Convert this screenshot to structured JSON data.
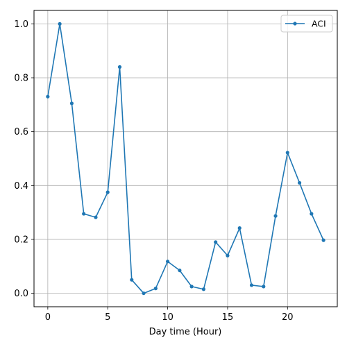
{
  "chart_data": {
    "type": "line",
    "title": "",
    "xlabel": "Day time (Hour)",
    "ylabel": "",
    "xlim": [
      -1.15,
      24.15
    ],
    "ylim": [
      -0.05,
      1.05
    ],
    "xticks": [
      0,
      5,
      10,
      15,
      20
    ],
    "xtick_labels": [
      "0",
      "5",
      "10",
      "15",
      "20"
    ],
    "yticks": [
      0.0,
      0.2,
      0.4,
      0.6,
      0.8,
      1.0
    ],
    "ytick_labels": [
      "0.0",
      "0.2",
      "0.4",
      "0.6",
      "0.8",
      "1.0"
    ],
    "grid": true,
    "legend_position": "top-right",
    "x": [
      0,
      1,
      2,
      3,
      4,
      5,
      6,
      7,
      8,
      9,
      10,
      11,
      12,
      13,
      14,
      15,
      16,
      17,
      18,
      19,
      20,
      21,
      22,
      23
    ],
    "series": [
      {
        "name": "ACI",
        "color": "#1f77b4",
        "marker": "circle",
        "values": [
          0.73,
          1.0,
          0.705,
          0.295,
          0.282,
          0.375,
          0.84,
          0.05,
          0.0,
          0.018,
          0.118,
          0.085,
          0.025,
          0.015,
          0.19,
          0.14,
          0.242,
          0.03,
          0.025,
          0.287,
          0.522,
          0.41,
          0.295,
          0.197
        ]
      }
    ]
  }
}
